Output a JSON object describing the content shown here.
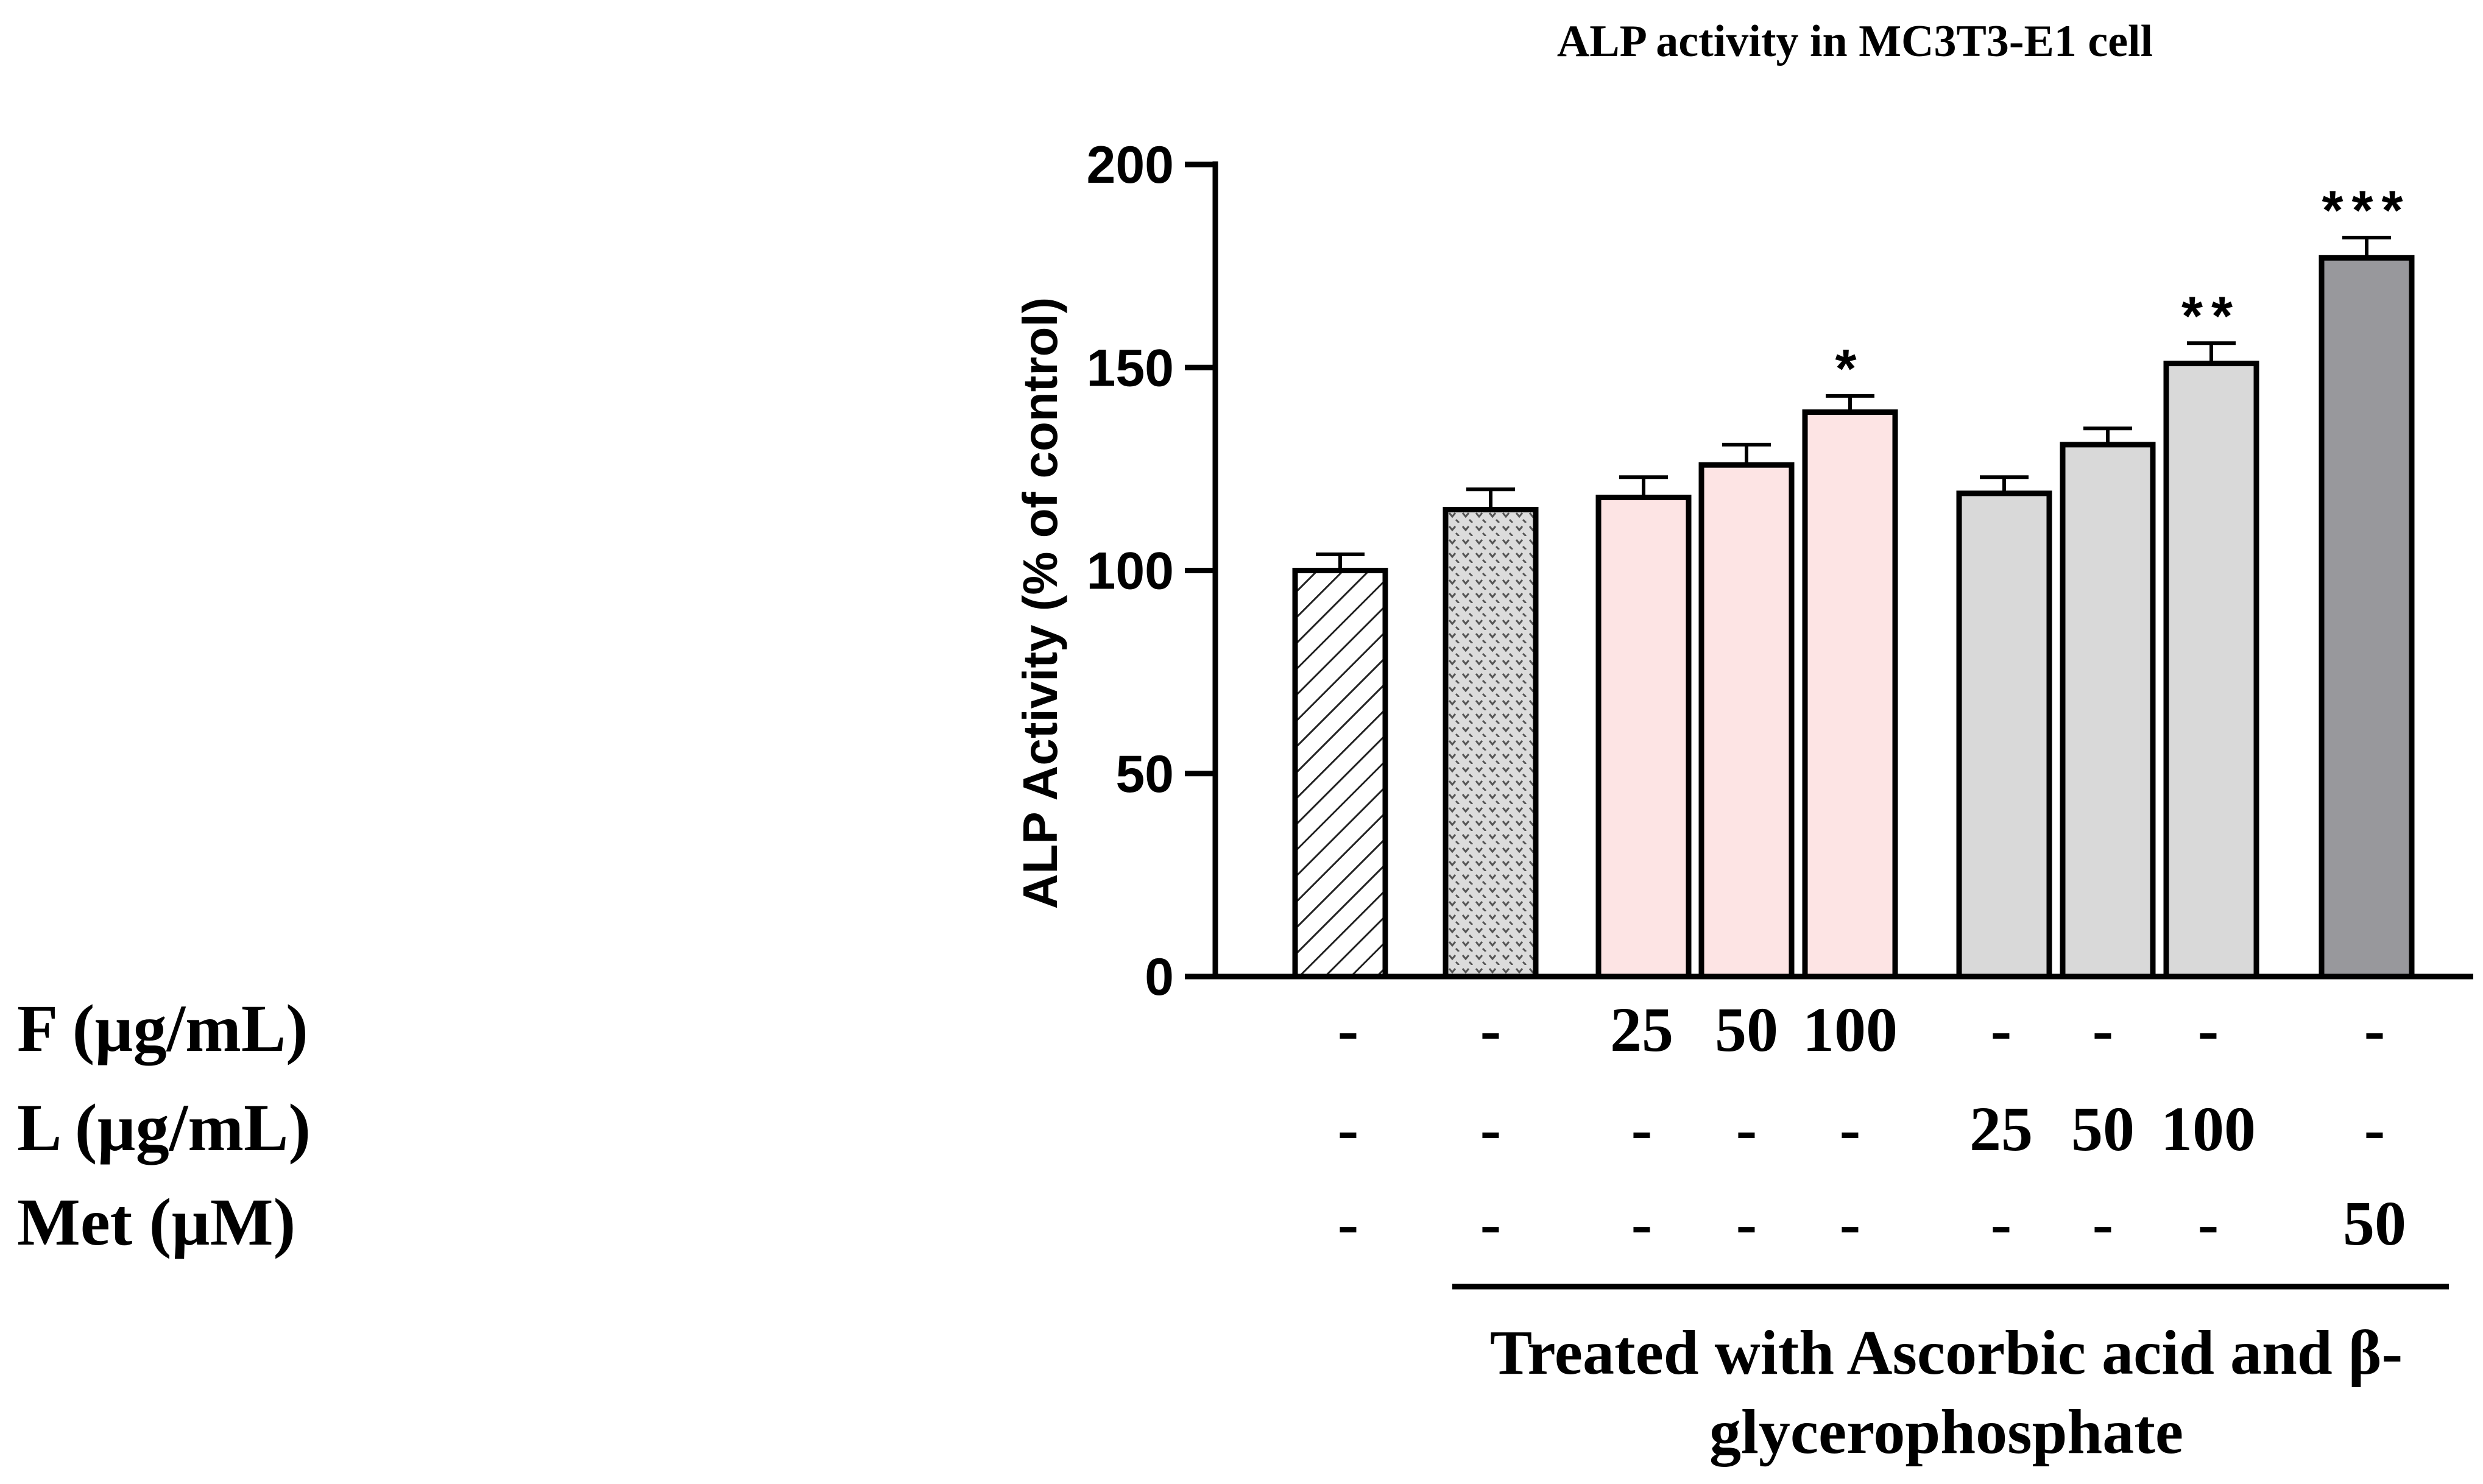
{
  "chart_data": {
    "type": "bar",
    "title": "ALP activity in MC3T3-E1 cell",
    "ylabel": "ALP Activity (% of control)",
    "xlabel": "",
    "ylim": [
      0,
      200
    ],
    "yticks": [
      0,
      50,
      100,
      150,
      200
    ],
    "grid": false,
    "legend": "none",
    "bars": [
      {
        "value": 100,
        "error": 4,
        "fill": "hatch",
        "sig": ""
      },
      {
        "value": 115,
        "error": 5,
        "fill": "dots",
        "sig": ""
      },
      {
        "value": 118,
        "error": 5,
        "fill": "#fde4e4",
        "sig": ""
      },
      {
        "value": 126,
        "error": 5,
        "fill": "#fde4e4",
        "sig": ""
      },
      {
        "value": 139,
        "error": 4,
        "fill": "#fde4e4",
        "sig": "*"
      },
      {
        "value": 119,
        "error": 4,
        "fill": "#d9d9d9",
        "sig": ""
      },
      {
        "value": 131,
        "error": 4,
        "fill": "#d9d9d9",
        "sig": ""
      },
      {
        "value": 151,
        "error": 5,
        "fill": "#d9d9d9",
        "sig": "**"
      },
      {
        "value": 177,
        "error": 5,
        "fill": "#98989c",
        "sig": "***"
      }
    ],
    "treatment_rows": [
      {
        "label": "F (µg/mL)",
        "cells": [
          "-",
          "-",
          "25",
          "50",
          "100",
          "-",
          "-",
          "-",
          "-"
        ]
      },
      {
        "label": "L (µg/mL)",
        "cells": [
          "-",
          "-",
          "-",
          "-",
          "-",
          "25",
          "50",
          "100",
          "-"
        ]
      },
      {
        "label": "Met (µM)",
        "cells": [
          "-",
          "-",
          "-",
          "-",
          "-",
          "-",
          "-",
          "-",
          "50"
        ]
      }
    ],
    "bracket_label_lines": [
      "Treated with Ascorbic acid and β-",
      "glycerophosphate"
    ]
  }
}
